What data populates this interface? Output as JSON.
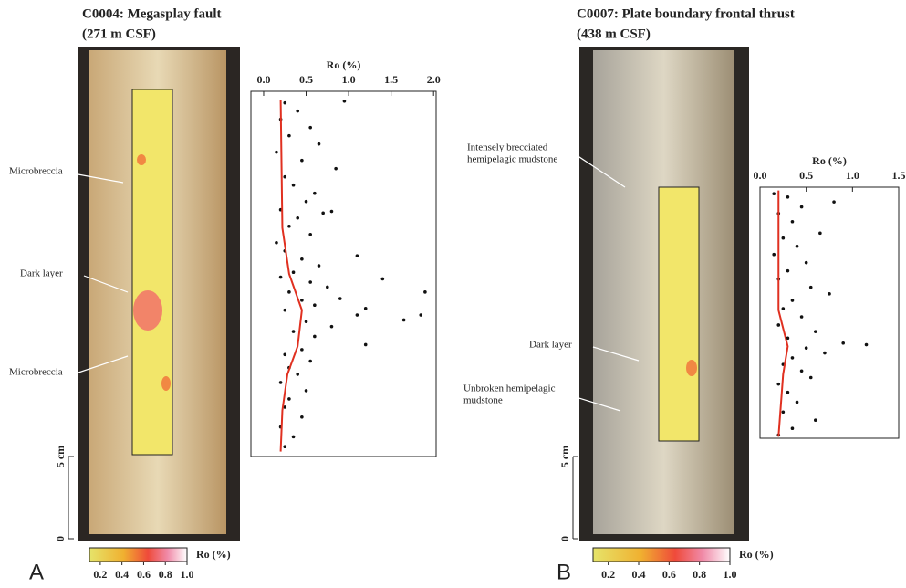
{
  "chart_data": [
    {
      "type": "scatter",
      "panel": "A",
      "title": "C0004: Megasplay fault",
      "subtitle": "(271 m CSF)",
      "x_label": "Ro (%)",
      "xlim": [
        -0.15,
        2.03
      ],
      "xticks": [
        {
          "value": 0,
          "label": "0.0"
        },
        0.5,
        {
          "value": 1,
          "label": "1.0"
        },
        1.5,
        {
          "value": 2,
          "label": "2.0"
        }
      ],
      "ylim": [
        5,
        27.2
      ],
      "scale_ticks": [
        0,
        {
          "value": 5,
          "label": "5 cm"
        }
      ],
      "annotations": [
        [
          "Microbreccia"
        ],
        [
          "Dark layer"
        ],
        [
          "Microbreccia"
        ]
      ],
      "colorbar": {
        "label": "Ro (%)",
        "lim": [
          0.1,
          1.0
        ],
        "ticks": [
          0.2,
          0.4,
          0.6,
          0.8,
          {
            "value": 1,
            "label": "1.0"
          }
        ]
      },
      "series": [
        {
          "type": "scatter",
          "color": "#111111",
          "x": [
            0.25,
            0.4,
            0.95,
            0.2,
            0.55,
            0.3,
            0.65,
            0.15,
            0.45,
            0.85,
            0.25,
            0.35,
            0.6,
            0.5,
            0.2,
            0.7,
            0.8,
            0.4,
            0.3,
            0.55,
            0.15,
            0.25,
            1.1,
            0.45,
            0.65,
            1.4,
            0.35,
            0.2,
            0.55,
            0.75,
            1.9,
            0.3,
            0.9,
            0.45,
            1.2,
            0.6,
            0.25,
            1.1,
            1.65,
            1.85,
            0.5,
            0.8,
            0.35,
            0.6,
            1.2,
            0.45,
            0.25,
            0.55,
            0.3,
            0.4,
            0.2,
            0.5,
            0.3,
            0.25,
            0.45,
            0.2,
            0.35,
            0.25
          ],
          "values": [
            26.5,
            26,
            26.6,
            25.5,
            25,
            24.5,
            24,
            23.5,
            23,
            22.5,
            22,
            21.5,
            21,
            20.5,
            20,
            19.8,
            19.9,
            19.5,
            19,
            18.5,
            18,
            17.5,
            17.2,
            17,
            16.6,
            15.8,
            16.2,
            15.9,
            15.6,
            15.3,
            15,
            15,
            14.6,
            14.5,
            14,
            14.2,
            13.9,
            13.6,
            13.3,
            13.6,
            13.2,
            12.9,
            12.6,
            12.3,
            11.8,
            11.5,
            11.2,
            10.8,
            10.4,
            10,
            9.5,
            9,
            8.5,
            8,
            7.4,
            6.8,
            6.2,
            5.6
          ]
        },
        {
          "type": "line",
          "color": "#e03020",
          "x": [
            0.2,
            0.22,
            0.3,
            0.45,
            0.4,
            0.28,
            0.22,
            0.2
          ],
          "values": [
            26.7,
            18.9,
            16.1,
            13.9,
            11.7,
            10,
            7.8,
            5.3
          ]
        }
      ]
    },
    {
      "type": "scatter",
      "panel": "B",
      "title": "C0007: Plate boundary frontal thrust",
      "subtitle": "(438 m CSF)",
      "x_label": "Ro (%)",
      "xlim": [
        0,
        1.5
      ],
      "xticks": [
        {
          "value": 0,
          "label": "0.0"
        },
        0.5,
        {
          "value": 1,
          "label": "1.0"
        },
        1.5
      ],
      "ylim": [
        6.1,
        21.4
      ],
      "scale_ticks": [
        0,
        {
          "value": 5,
          "label": "5 cm"
        }
      ],
      "annotations": [
        [
          "Intensely brecciated",
          "hemipelagic mudstone"
        ],
        [
          "Dark layer"
        ],
        [
          "Unbroken hemipelagic",
          "mudstone"
        ]
      ],
      "colorbar": {
        "label": "Ro (%)",
        "lim": [
          0.1,
          1.0
        ],
        "ticks": [
          0.2,
          0.4,
          0.6,
          0.8,
          {
            "value": 1,
            "label": "1.0"
          }
        ]
      },
      "series": [
        {
          "type": "scatter",
          "color": "#111111",
          "x": [
            0.15,
            0.3,
            0.8,
            0.45,
            0.2,
            0.35,
            0.65,
            0.25,
            0.4,
            0.15,
            0.5,
            0.3,
            0.2,
            0.55,
            0.75,
            0.35,
            0.25,
            0.45,
            0.2,
            0.6,
            0.3,
            0.9,
            1.15,
            0.5,
            0.7,
            0.35,
            0.25,
            0.45,
            0.55,
            0.2,
            0.3,
            0.4,
            0.25,
            0.6,
            0.35,
            0.2
          ],
          "values": [
            21,
            20.8,
            20.5,
            20.2,
            19.8,
            19.3,
            18.6,
            18.3,
            17.8,
            17.3,
            16.8,
            16.3,
            15.8,
            15.3,
            14.9,
            14.5,
            14,
            13.5,
            13,
            12.6,
            12.2,
            11.9,
            11.8,
            11.6,
            11.3,
            11,
            10.6,
            10.2,
            9.8,
            9.4,
            8.9,
            8.3,
            7.7,
            7.2,
            6.7,
            6.3
          ]
        },
        {
          "type": "line",
          "color": "#e03020",
          "x": [
            0.2,
            0.2,
            0.3,
            0.25,
            0.2
          ],
          "values": [
            21.2,
            13.9,
            11.7,
            10,
            6.2
          ]
        }
      ]
    }
  ]
}
